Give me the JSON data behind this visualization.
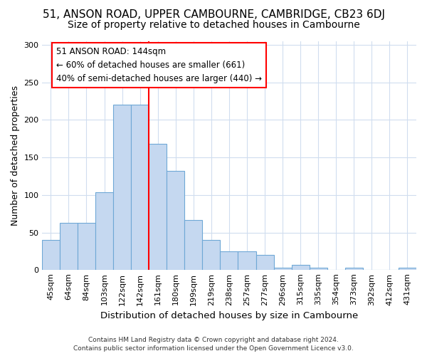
{
  "title1": "51, ANSON ROAD, UPPER CAMBOURNE, CAMBRIDGE, CB23 6DJ",
  "title2": "Size of property relative to detached houses in Cambourne",
  "xlabel": "Distribution of detached houses by size in Cambourne",
  "ylabel": "Number of detached properties",
  "categories": [
    "45sqm",
    "64sqm",
    "84sqm",
    "103sqm",
    "122sqm",
    "142sqm",
    "161sqm",
    "180sqm",
    "199sqm",
    "219sqm",
    "238sqm",
    "257sqm",
    "277sqm",
    "296sqm",
    "315sqm",
    "335sqm",
    "354sqm",
    "373sqm",
    "392sqm",
    "412sqm",
    "431sqm"
  ],
  "values": [
    40,
    63,
    63,
    104,
    220,
    220,
    168,
    132,
    67,
    40,
    25,
    25,
    20,
    3,
    7,
    3,
    0,
    3,
    0,
    0,
    3
  ],
  "bar_color": "#c5d8f0",
  "bar_edge_color": "#6fa8d6",
  "vline_x": 5.5,
  "vline_color": "red",
  "annotation_text": "51 ANSON ROAD: 144sqm\n← 60% of detached houses are smaller (661)\n40% of semi-detached houses are larger (440) →",
  "annotation_box_facecolor": "white",
  "annotation_box_edgecolor": "red",
  "ylim": [
    0,
    305
  ],
  "yticks": [
    0,
    50,
    100,
    150,
    200,
    250,
    300
  ],
  "footnote1": "Contains HM Land Registry data © Crown copyright and database right 2024.",
  "footnote2": "Contains public sector information licensed under the Open Government Licence v3.0.",
  "bg_color": "#ffffff",
  "grid_color": "#d0ddef",
  "title1_fontsize": 11,
  "title2_fontsize": 10,
  "xlabel_fontsize": 9.5,
  "ylabel_fontsize": 9,
  "tick_fontsize": 8,
  "annot_fontsize": 8.5
}
